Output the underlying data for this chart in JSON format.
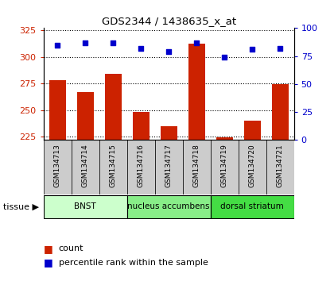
{
  "title": "GDS2344 / 1438635_x_at",
  "samples": [
    "GSM134713",
    "GSM134714",
    "GSM134715",
    "GSM134716",
    "GSM134717",
    "GSM134718",
    "GSM134719",
    "GSM134720",
    "GSM134721"
  ],
  "counts": [
    278,
    267,
    284,
    248,
    235,
    312,
    224,
    240,
    274
  ],
  "percentiles": [
    85,
    87,
    87,
    82,
    79,
    87,
    74,
    81,
    82
  ],
  "ylim_left": [
    222,
    327
  ],
  "ylim_right": [
    0,
    100
  ],
  "yticks_left": [
    225,
    250,
    275,
    300,
    325
  ],
  "yticks_right": [
    0,
    25,
    50,
    75,
    100
  ],
  "bar_color": "#cc2200",
  "dot_color": "#0000cc",
  "tissue_groups": [
    {
      "label": "BNST",
      "start": 0,
      "end": 3,
      "color": "#ccffcc"
    },
    {
      "label": "nucleus accumbens",
      "start": 3,
      "end": 6,
      "color": "#88ee88"
    },
    {
      "label": "dorsal striatum",
      "start": 6,
      "end": 9,
      "color": "#44dd44"
    }
  ],
  "tissue_label": "tissue",
  "legend_count_label": "count",
  "legend_pct_label": "percentile rank within the sample",
  "xticklabel_bg": "#cccccc",
  "n_samples": 9
}
